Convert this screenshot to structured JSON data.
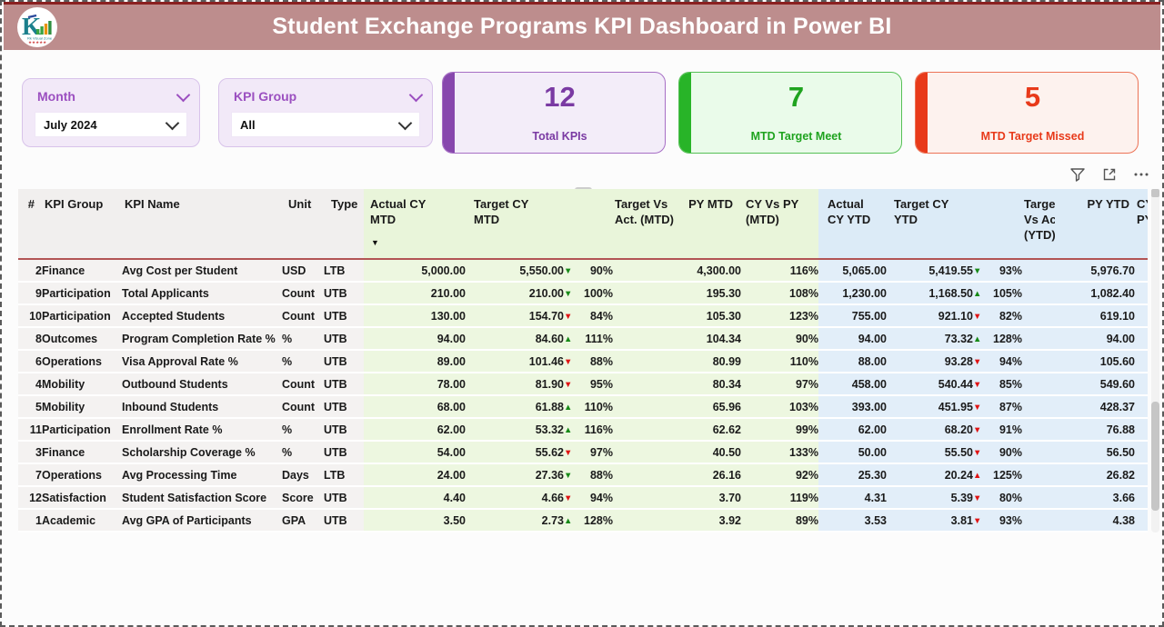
{
  "header": {
    "title": "Student Exchange Programs KPI Dashboard in Power BI",
    "logo_letter": "K",
    "logo_subtext": "Rk Visual Zone"
  },
  "slicers": [
    {
      "label": "Month",
      "value": "July 2024"
    },
    {
      "label": "KPI Group",
      "value": "All"
    }
  ],
  "cards": [
    {
      "value": "12",
      "label": "Total KPIs",
      "accent": "#8747ad",
      "bg": "#f3edf9",
      "text": "#7a3aa3"
    },
    {
      "value": "7",
      "label": "MTD Target Meet",
      "accent": "#28b428",
      "bg": "#eafbea",
      "text": "#1fa31f"
    },
    {
      "value": "5",
      "label": "MTD Target Missed",
      "accent": "#e83a1a",
      "bg": "#fdf2ee",
      "text": "#e83a1a"
    }
  ],
  "visual_header": {
    "icons": [
      "filter-icon",
      "focus-mode-icon",
      "more-options-icon"
    ]
  },
  "table": {
    "arrow_colors": {
      "good": "#178a17",
      "bad": "#e01414"
    },
    "section_colors": {
      "base": "#f4f2f1",
      "mtd": "#edf7e0",
      "ytd": "#e2eef9"
    },
    "columns": [
      {
        "key": "num",
        "label": "#",
        "section": "base"
      },
      {
        "key": "group",
        "label": "KPI Group",
        "section": "base"
      },
      {
        "key": "name",
        "label": "KPI Name",
        "section": "base"
      },
      {
        "key": "unit",
        "label": "Unit",
        "section": "base"
      },
      {
        "key": "type",
        "label": "Type",
        "section": "base"
      },
      {
        "key": "actual_mtd",
        "label": "Actual CY MTD",
        "section": "mtd",
        "sorted": "desc"
      },
      {
        "key": "target_mtd",
        "label": "Target CY MTD",
        "section": "mtd"
      },
      {
        "key": "tva_mtd",
        "label": "Target Vs Act. (MTD)",
        "section": "mtd"
      },
      {
        "key": "py_mtd",
        "label": "PY MTD",
        "section": "mtd"
      },
      {
        "key": "cyvspy_mtd",
        "label": "CY Vs PY (MTD)",
        "section": "mtd"
      },
      {
        "key": "actual_ytd",
        "label": "Actual CY YTD",
        "section": "ytd"
      },
      {
        "key": "target_ytd",
        "label": "Target CY YTD",
        "section": "ytd"
      },
      {
        "key": "tva_ytd",
        "label": "Target Vs Act. (YTD)",
        "section": "ytd"
      },
      {
        "key": "py_ytd",
        "label": "PY YTD",
        "section": "ytd"
      },
      {
        "key": "cyvspy_ytd",
        "label": "CY Vs PY (YTD)",
        "section": "ytd",
        "truncated": true
      }
    ],
    "rows": [
      {
        "num": "2",
        "group": "Finance",
        "name": "Avg Cost per Student",
        "unit": "USD",
        "type": "LTB",
        "actual_mtd": "5,000.00",
        "target_mtd": "5,550.00",
        "tva_mtd": {
          "dir": "down",
          "tone": "good",
          "value": "90%"
        },
        "py_mtd": "4,300.00",
        "cyvspy_mtd": "116%",
        "actual_ytd": "5,065.00",
        "target_ytd": "5,419.55",
        "tva_ytd": {
          "dir": "down",
          "tone": "good",
          "value": "93%"
        },
        "py_ytd": "5,976.70",
        "cyvspy_ytd": ""
      },
      {
        "num": "9",
        "group": "Participation",
        "name": "Total Applicants",
        "unit": "Count",
        "type": "UTB",
        "actual_mtd": "210.00",
        "target_mtd": "210.00",
        "tva_mtd": {
          "dir": "down",
          "tone": "good",
          "value": "100%"
        },
        "py_mtd": "195.30",
        "cyvspy_mtd": "108%",
        "actual_ytd": "1,230.00",
        "target_ytd": "1,168.50",
        "tva_ytd": {
          "dir": "up",
          "tone": "good",
          "value": "105%"
        },
        "py_ytd": "1,082.40",
        "cyvspy_ytd": ""
      },
      {
        "num": "10",
        "group": "Participation",
        "name": "Accepted Students",
        "unit": "Count",
        "type": "UTB",
        "actual_mtd": "130.00",
        "target_mtd": "154.70",
        "tva_mtd": {
          "dir": "down",
          "tone": "bad",
          "value": "84%"
        },
        "py_mtd": "105.30",
        "cyvspy_mtd": "123%",
        "actual_ytd": "755.00",
        "target_ytd": "921.10",
        "tva_ytd": {
          "dir": "down",
          "tone": "bad",
          "value": "82%"
        },
        "py_ytd": "619.10",
        "cyvspy_ytd": ""
      },
      {
        "num": "8",
        "group": "Outcomes",
        "name": "Program Completion Rate %",
        "unit": "%",
        "type": "UTB",
        "actual_mtd": "94.00",
        "target_mtd": "84.60",
        "tva_mtd": {
          "dir": "up",
          "tone": "good",
          "value": "111%"
        },
        "py_mtd": "104.34",
        "cyvspy_mtd": "90%",
        "actual_ytd": "94.00",
        "target_ytd": "73.32",
        "tva_ytd": {
          "dir": "up",
          "tone": "good",
          "value": "128%"
        },
        "py_ytd": "94.00",
        "cyvspy_ytd": ""
      },
      {
        "num": "6",
        "group": "Operations",
        "name": "Visa Approval Rate %",
        "unit": "%",
        "type": "UTB",
        "actual_mtd": "89.00",
        "target_mtd": "101.46",
        "tva_mtd": {
          "dir": "down",
          "tone": "bad",
          "value": "88%"
        },
        "py_mtd": "80.99",
        "cyvspy_mtd": "110%",
        "actual_ytd": "88.00",
        "target_ytd": "93.28",
        "tva_ytd": {
          "dir": "down",
          "tone": "bad",
          "value": "94%"
        },
        "py_ytd": "105.60",
        "cyvspy_ytd": ""
      },
      {
        "num": "4",
        "group": "Mobility",
        "name": "Outbound Students",
        "unit": "Count",
        "type": "UTB",
        "actual_mtd": "78.00",
        "target_mtd": "81.90",
        "tva_mtd": {
          "dir": "down",
          "tone": "bad",
          "value": "95%"
        },
        "py_mtd": "80.34",
        "cyvspy_mtd": "97%",
        "actual_ytd": "458.00",
        "target_ytd": "540.44",
        "tva_ytd": {
          "dir": "down",
          "tone": "bad",
          "value": "85%"
        },
        "py_ytd": "549.60",
        "cyvspy_ytd": ""
      },
      {
        "num": "5",
        "group": "Mobility",
        "name": "Inbound Students",
        "unit": "Count",
        "type": "UTB",
        "actual_mtd": "68.00",
        "target_mtd": "61.88",
        "tva_mtd": {
          "dir": "up",
          "tone": "good",
          "value": "110%"
        },
        "py_mtd": "65.96",
        "cyvspy_mtd": "103%",
        "actual_ytd": "393.00",
        "target_ytd": "451.95",
        "tva_ytd": {
          "dir": "down",
          "tone": "bad",
          "value": "87%"
        },
        "py_ytd": "428.37",
        "cyvspy_ytd": ""
      },
      {
        "num": "11",
        "group": "Participation",
        "name": "Enrollment Rate %",
        "unit": "%",
        "type": "UTB",
        "actual_mtd": "62.00",
        "target_mtd": "53.32",
        "tva_mtd": {
          "dir": "up",
          "tone": "good",
          "value": "116%"
        },
        "py_mtd": "62.62",
        "cyvspy_mtd": "99%",
        "actual_ytd": "62.00",
        "target_ytd": "68.20",
        "tva_ytd": {
          "dir": "down",
          "tone": "bad",
          "value": "91%"
        },
        "py_ytd": "76.88",
        "cyvspy_ytd": ""
      },
      {
        "num": "3",
        "group": "Finance",
        "name": "Scholarship Coverage %",
        "unit": "%",
        "type": "UTB",
        "actual_mtd": "54.00",
        "target_mtd": "55.62",
        "tva_mtd": {
          "dir": "down",
          "tone": "bad",
          "value": "97%"
        },
        "py_mtd": "40.50",
        "cyvspy_mtd": "133%",
        "actual_ytd": "50.00",
        "target_ytd": "55.50",
        "tva_ytd": {
          "dir": "down",
          "tone": "bad",
          "value": "90%"
        },
        "py_ytd": "56.50",
        "cyvspy_ytd": ""
      },
      {
        "num": "7",
        "group": "Operations",
        "name": "Avg Processing Time",
        "unit": "Days",
        "type": "LTB",
        "actual_mtd": "24.00",
        "target_mtd": "27.36",
        "tva_mtd": {
          "dir": "down",
          "tone": "good",
          "value": "88%"
        },
        "py_mtd": "26.16",
        "cyvspy_mtd": "92%",
        "actual_ytd": "25.30",
        "target_ytd": "20.24",
        "tva_ytd": {
          "dir": "up",
          "tone": "bad",
          "value": "125%"
        },
        "py_ytd": "26.82",
        "cyvspy_ytd": ""
      },
      {
        "num": "12",
        "group": "Satisfaction",
        "name": "Student Satisfaction Score",
        "unit": "Score",
        "type": "UTB",
        "actual_mtd": "4.40",
        "target_mtd": "4.66",
        "tva_mtd": {
          "dir": "down",
          "tone": "bad",
          "value": "94%"
        },
        "py_mtd": "3.70",
        "cyvspy_mtd": "119%",
        "actual_ytd": "4.31",
        "target_ytd": "5.39",
        "tva_ytd": {
          "dir": "down",
          "tone": "bad",
          "value": "80%"
        },
        "py_ytd": "3.66",
        "cyvspy_ytd": ""
      },
      {
        "num": "1",
        "group": "Academic",
        "name": "Avg GPA of Participants",
        "unit": "GPA",
        "type": "UTB",
        "actual_mtd": "3.50",
        "target_mtd": "2.73",
        "tva_mtd": {
          "dir": "up",
          "tone": "good",
          "value": "128%"
        },
        "py_mtd": "3.92",
        "cyvspy_mtd": "89%",
        "actual_ytd": "3.53",
        "target_ytd": "3.81",
        "tva_ytd": {
          "dir": "down",
          "tone": "bad",
          "value": "93%"
        },
        "py_ytd": "4.38",
        "cyvspy_ytd": ""
      }
    ]
  }
}
